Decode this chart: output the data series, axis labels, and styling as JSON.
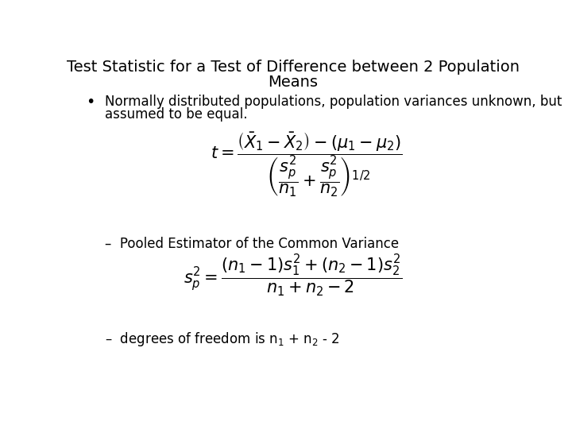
{
  "title_line1": "Test Statistic for a Test of Difference between 2 Population",
  "title_line2": "Means",
  "bullet_text_line1": "Normally distributed populations, population variances unknown, but",
  "bullet_text_line2": "assumed to be equal.",
  "pooled_label": "–  Pooled Estimator of the Common Variance",
  "dof_prefix": "–  degrees of freedom is n",
  "dof_suffix": " + n",
  "dof_end": " - 2",
  "bg_color": "#ffffff",
  "text_color": "#000000",
  "title_fontsize": 14,
  "body_fontsize": 12,
  "formula_fontsize": 15
}
